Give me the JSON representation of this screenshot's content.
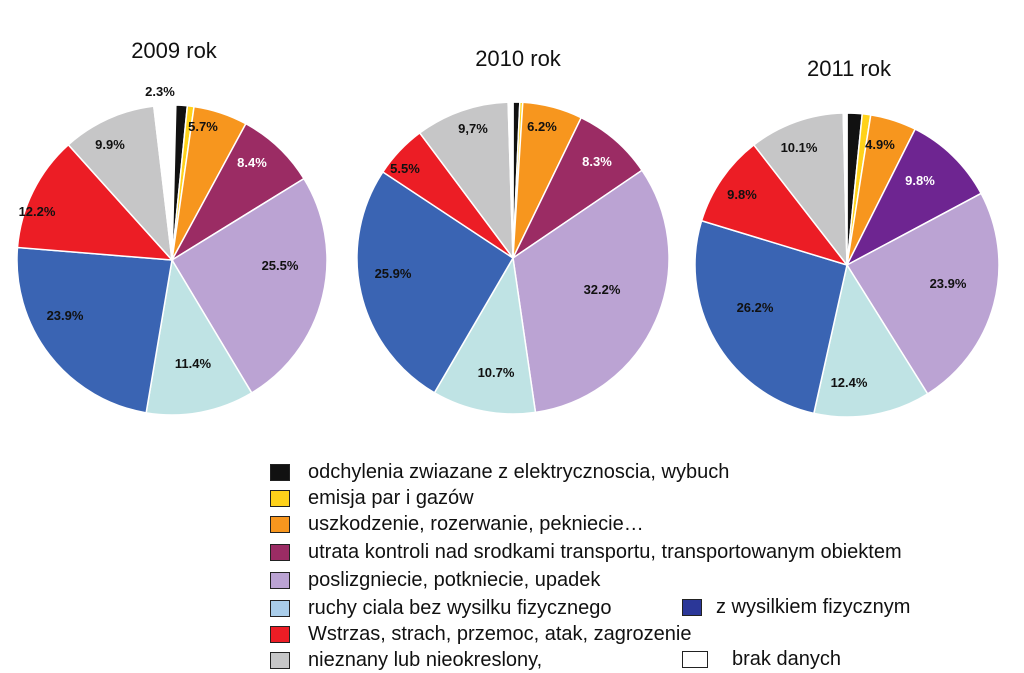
{
  "chart_data": [
    {
      "type": "pie",
      "title": "2009 rok",
      "slices": [
        {
          "category": "brak danych",
          "value": 0.4,
          "label": ""
        },
        {
          "category": "odchylenia zwiazane z elektrycznoscia, wybuch",
          "value": 1.2,
          "label": ""
        },
        {
          "category": "emisja par i gazów",
          "value": 0.7,
          "label": ""
        },
        {
          "category": "uszkodzenie, rozerwanie, pekniecie…",
          "value": 5.7,
          "label": "5.7%"
        },
        {
          "category": "utrata kontroli nad srodkami transportu, transportowanym obiektem",
          "value": 8.4,
          "label": "8.4%"
        },
        {
          "category": "poslizgniecie, potkniecie, upadek",
          "value": 25.5,
          "label": "25.5%"
        },
        {
          "category": "ruchy ciala bez wysilku fizycznego",
          "value": 11.4,
          "label": "11.4%"
        },
        {
          "category": "z wysilkiem fizycznym",
          "value": 23.9,
          "label": "23.9%"
        },
        {
          "category": "Wstrzas, strach, przemoc, atak, zagrozenie",
          "value": 12.2,
          "label": "12.2%"
        },
        {
          "category": "nieznany lub nieokreslony,",
          "value": 9.9,
          "label": "9.9%"
        },
        {
          "category": "brak danych",
          "value": 1.9,
          "label": ""
        }
      ],
      "extra_label": "2.3%"
    },
    {
      "type": "pie",
      "title": "2010 rok",
      "slices": [
        {
          "category": "odchylenia zwiazane z elektrycznoscia, wybuch",
          "value": 0.7,
          "label": ""
        },
        {
          "category": "emisja par i gazów",
          "value": 0.3,
          "label": ""
        },
        {
          "category": "uszkodzenie, rozerwanie, pekniecie…",
          "value": 6.2,
          "label": "6.2%"
        },
        {
          "category": "utrata kontroli nad srodkami transportu, transportowanym obiektem",
          "value": 8.3,
          "label": "8.3%"
        },
        {
          "category": "poslizgniecie, potkniecie, upadek",
          "value": 32.2,
          "label": "32.2%"
        },
        {
          "category": "ruchy ciala bez wysilku fizycznego",
          "value": 10.7,
          "label": "10.7%"
        },
        {
          "category": "z wysilkiem fizycznym",
          "value": 25.9,
          "label": "25.9%"
        },
        {
          "category": "Wstrzas, strach, przemoc, atak, zagrozenie",
          "value": 5.5,
          "label": "5.5%"
        },
        {
          "category": "nieznany lub nieokreslony,",
          "value": 9.7,
          "label": "9,7%"
        },
        {
          "category": "brak danych",
          "value": 0.5,
          "label": ""
        }
      ]
    },
    {
      "type": "pie",
      "title": "2011 rok",
      "slices": [
        {
          "category": "odchylenia zwiazane z elektrycznoscia, wybuch",
          "value": 1.6,
          "label": ""
        },
        {
          "category": "emisja par i gazów",
          "value": 0.9,
          "label": ""
        },
        {
          "category": "uszkodzenie, rozerwanie, pekniecie…",
          "value": 4.9,
          "label": "4.9%"
        },
        {
          "category": "utrata kontroli nad srodkami transportu, transportowanym obiektem",
          "value": 9.8,
          "label": "9.8%"
        },
        {
          "category": "poslizgniecie, potkniecie, upadek",
          "value": 23.9,
          "label": "23.9%"
        },
        {
          "category": "ruchy ciala bez wysilku fizycznego",
          "value": 12.4,
          "label": "12.4%"
        },
        {
          "category": "z wysilkiem fizycznym",
          "value": 26.2,
          "label": "26.2%"
        },
        {
          "category": "Wstrzas, strach, przemoc, atak, zagrozenie",
          "value": 9.8,
          "label": "9.8%"
        },
        {
          "category": "nieznany lub nieokreslony,",
          "value": 10.1,
          "label": "10.1%"
        },
        {
          "category": "brak danych",
          "value": 0.4,
          "label": ""
        }
      ]
    }
  ],
  "legend": {
    "items": [
      {
        "label": "odchylenia zwiazane z elektrycznoscia, wybuch",
        "color": "#111111"
      },
      {
        "label": "emisja par i gazów",
        "color": "#ffd21a"
      },
      {
        "label": "uszkodzenie, rozerwanie, pekniecie…",
        "color": "#f7961e"
      },
      {
        "label": "utrata kontroli nad srodkami transportu, transportowanym obiektem",
        "color": "#9b2c64"
      },
      {
        "label": "poslizgniecie, potkniecie, upadek",
        "color": "#bba3d3"
      },
      {
        "label": "ruchy ciala bez wysilku fizycznego",
        "color": "#a9cdea"
      },
      {
        "label": "Wstrzas, strach, przemoc, atak, zagrozenie",
        "color": "#ec1d25"
      },
      {
        "label": "nieznany lub nieokreslony,",
        "color": "#c6c6c7"
      }
    ],
    "extra_z": {
      "label": "z wysilkiem fizycznym",
      "color": "#2b3798"
    },
    "extra_brak": {
      "label": "brak danych",
      "color": "#ffffff"
    }
  },
  "colors": {
    "odchylenia zwiazane z elektrycznoscia, wybuch": "#111111",
    "emisja par i gazów": "#ffd21a",
    "uszkodzenie, rozerwanie, pekniecie…": "#f7961e",
    "utrata kontroli nad srodkami transportu, transportowanym obiektem": "#9b2c64",
    "poslizgniecie, potkniecie, upadek": "#bba3d3",
    "ruchy ciala bez wysilku fizycznego": "#bfe3e4",
    "z wysilkiem fizycznym": "#3a64b3",
    "Wstrzas, strach, przemoc, atak, zagrozenie": "#ec1d25",
    "nieznany lub nieokreslony,": "#c6c6c7",
    "brak danych": "#ffffff",
    "utrata_2011": "#6e2591"
  }
}
